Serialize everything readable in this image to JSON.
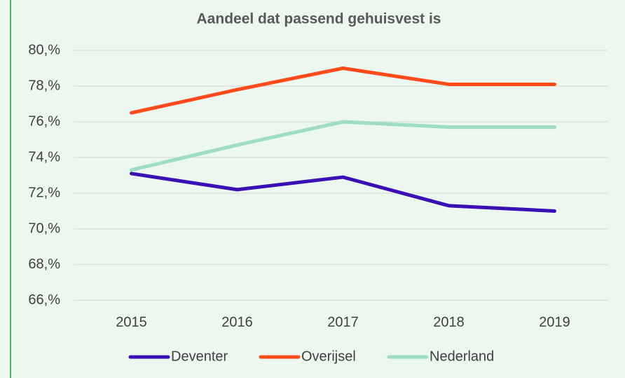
{
  "chart_data": {
    "type": "line",
    "title": "Aandeel dat passend gehuisvest is",
    "categories": [
      "2015",
      "2016",
      "2017",
      "2018",
      "2019"
    ],
    "series": [
      {
        "name": "Deventer",
        "color": "#3b0fb4",
        "values": [
          73.1,
          72.2,
          72.9,
          71.3,
          71.0
        ]
      },
      {
        "name": "Overijsel",
        "color": "#ff4a1c",
        "values": [
          76.5,
          77.8,
          79.0,
          78.1,
          78.1
        ]
      },
      {
        "name": "Nederland",
        "color": "#9edcc4",
        "values": [
          73.3,
          74.7,
          76.0,
          75.7,
          75.7
        ]
      }
    ],
    "ylim": [
      66,
      80
    ],
    "yticks": [
      {
        "value": 66,
        "label": "66,%"
      },
      {
        "value": 68,
        "label": "68,%"
      },
      {
        "value": 70,
        "label": "70,%"
      },
      {
        "value": 72,
        "label": "72,%"
      },
      {
        "value": 74,
        "label": "74,%"
      },
      {
        "value": 76,
        "label": "76,%"
      },
      {
        "value": 78,
        "label": "78,%"
      },
      {
        "value": 80,
        "label": "80,%"
      }
    ],
    "grid": true,
    "legend": "bottom"
  }
}
